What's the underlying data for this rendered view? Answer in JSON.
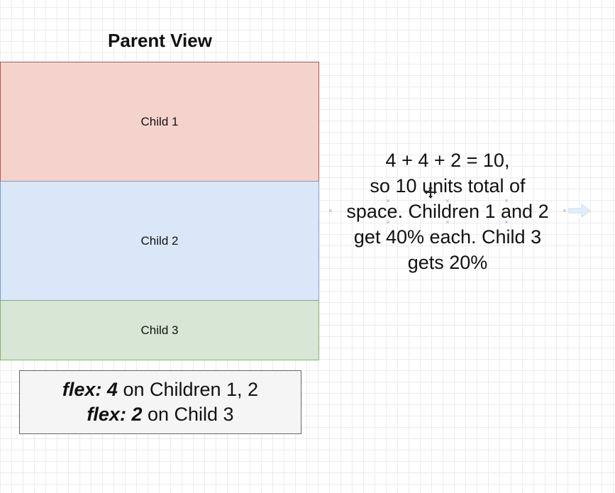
{
  "diagram": {
    "title": "Parent View",
    "children": [
      {
        "label": "Child 1",
        "flex": 4,
        "fill": "#f5d3cd",
        "stroke": "#b85450"
      },
      {
        "label": "Child 2",
        "flex": 4,
        "fill": "#dae7f9",
        "stroke": "#7b9ccc"
      },
      {
        "label": "Child 3",
        "flex": 2,
        "fill": "#d8e6d5",
        "stroke": "#82b366"
      }
    ],
    "note": {
      "line1_key": "flex: 4",
      "line1_rest": " on Children 1, 2",
      "line2_key": "flex: 2",
      "line2_rest": " on Child 3"
    },
    "explanation": [
      "4 + 4 + 2 = 10,",
      "so 10 units  total of",
      "space.  Children 1 and 2",
      "get 40% each.  Child 3",
      "gets 20%"
    ]
  },
  "icons": [
    "move-icon",
    "arrow-right-icon"
  ]
}
